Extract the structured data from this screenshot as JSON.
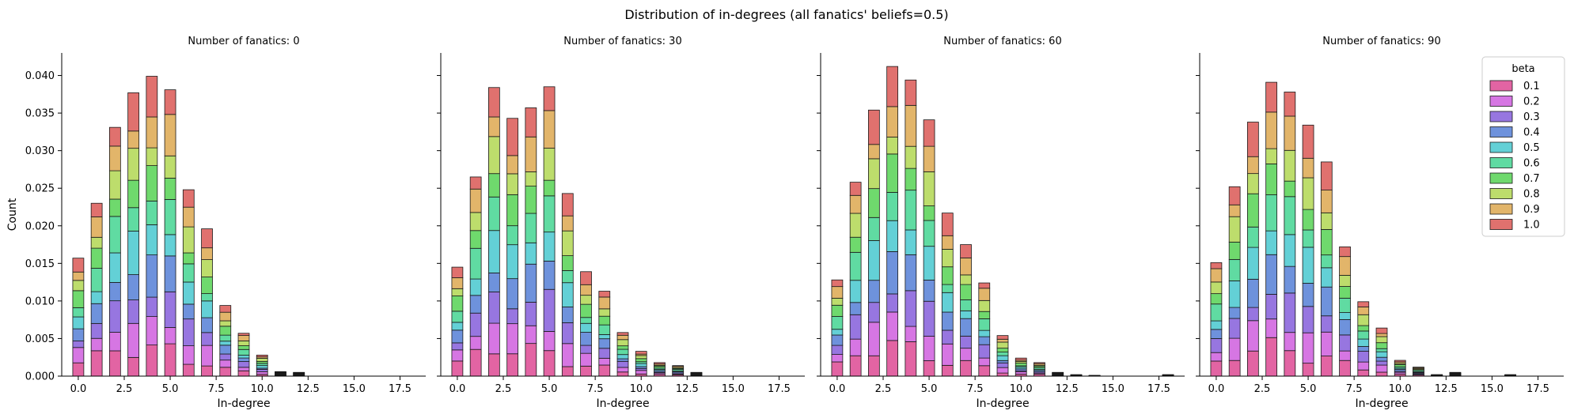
{
  "figure": {
    "title": "Distribution of in-degrees (all fanatics' beliefs=0.5)"
  },
  "chart_data": {
    "type": "bar",
    "stacked": true,
    "xlabel": "In-degree",
    "ylabel": "Count",
    "xlim": [
      -0.9,
      18.9
    ],
    "ylim": [
      0,
      0.043
    ],
    "xticks": [
      0.0,
      2.5,
      5.0,
      7.5,
      10.0,
      12.5,
      15.0,
      17.5
    ],
    "xtick_labels": [
      "0.0",
      "2.5",
      "5.0",
      "7.5",
      "10.0",
      "12.5",
      "15.0",
      "17.5"
    ],
    "yticks": [
      0,
      0.005,
      0.01,
      0.015,
      0.02,
      0.025,
      0.03,
      0.035,
      0.04
    ],
    "ytick_labels": [
      "0.000",
      "0.005",
      "0.010",
      "0.015",
      "0.020",
      "0.025",
      "0.030",
      "0.035",
      "0.040"
    ],
    "shared_y": true,
    "bin_width": 0.6,
    "legend": {
      "title": "beta",
      "position": "top-right",
      "labels": [
        "0.1",
        "0.2",
        "0.3",
        "0.4",
        "0.5",
        "0.6",
        "0.7",
        "0.8",
        "0.9",
        "1.0"
      ]
    },
    "series_colors": [
      "#e264a3",
      "#d676e3",
      "#9776e0",
      "#6e92dc",
      "#63d0d6",
      "#60dba2",
      "#6fd96d",
      "#bddd6c",
      "#e2b56a",
      "#e0716e"
    ],
    "panels": [
      {
        "title": "Number of fanatics: 0",
        "x": [
          0,
          1,
          2,
          3,
          4,
          5,
          6,
          7,
          8,
          9,
          10,
          11,
          12
        ],
        "totals": [
          0.0157,
          0.023,
          0.0331,
          0.0377,
          0.0399,
          0.0381,
          0.0248,
          0.0196,
          0.0094,
          0.0057,
          0.0028,
          0.0006,
          0.0005
        ]
      },
      {
        "title": "Number of fanatics: 30",
        "x": [
          0,
          1,
          2,
          3,
          4,
          5,
          6,
          7,
          8,
          9,
          10,
          11,
          12,
          13
        ],
        "totals": [
          0.0145,
          0.0265,
          0.0384,
          0.0343,
          0.0357,
          0.0385,
          0.0243,
          0.0139,
          0.0113,
          0.0058,
          0.0033,
          0.0018,
          0.0014,
          0.0005
        ]
      },
      {
        "title": "Number of fanatics: 60",
        "x": [
          0,
          1,
          2,
          3,
          4,
          5,
          6,
          7,
          8,
          9,
          10,
          11,
          12,
          13,
          14,
          18
        ],
        "totals": [
          0.0128,
          0.0258,
          0.0354,
          0.0412,
          0.0394,
          0.0341,
          0.0217,
          0.0175,
          0.0124,
          0.0054,
          0.0024,
          0.0018,
          0.0005,
          0.0002,
          0.0001,
          0.0002
        ]
      },
      {
        "title": "Number of fanatics: 90",
        "x": [
          0,
          1,
          2,
          3,
          4,
          5,
          6,
          7,
          8,
          9,
          10,
          11,
          12,
          13,
          16
        ],
        "totals": [
          0.0151,
          0.0252,
          0.0338,
          0.0391,
          0.0378,
          0.0334,
          0.0285,
          0.0172,
          0.0099,
          0.0064,
          0.0021,
          0.0012,
          0.0002,
          0.0005,
          0.0002
        ]
      }
    ]
  }
}
